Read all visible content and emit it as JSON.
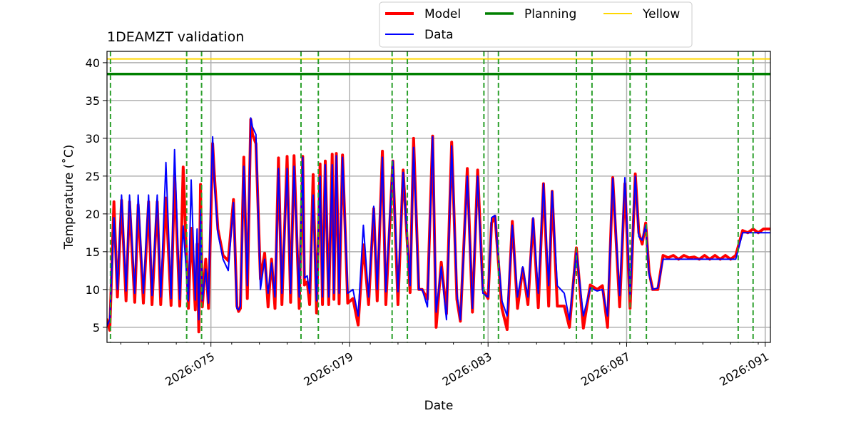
{
  "chart_data": {
    "type": "line",
    "title": "1DEAMZT validation",
    "xlabel": "Date",
    "ylabel": "Temperature ($^\\circ$C)",
    "ylabel_display": "Temperature (˚C)",
    "xlim": [
      72.0,
      91.15
    ],
    "ylim": [
      3.0,
      41.5
    ],
    "yticks": [
      5,
      10,
      15,
      20,
      25,
      30,
      35,
      40
    ],
    "xticks": [
      {
        "value": 75,
        "label": "2026:075"
      },
      {
        "value": 79,
        "label": "2026:079"
      },
      {
        "value": 83,
        "label": "2026:083"
      },
      {
        "value": 87,
        "label": "2026:087"
      },
      {
        "value": 91,
        "label": "2026:091"
      }
    ],
    "minor_xticks": [
      72.4,
      73.2,
      74.0,
      74.8,
      75.6,
      76.4,
      77.2,
      78.0,
      78.8,
      79.6,
      80.4,
      81.2,
      82.0,
      82.8,
      83.6,
      84.4,
      85.2,
      86.0,
      86.8,
      87.6,
      88.4,
      89.2,
      90.0,
      90.8
    ],
    "grid": true,
    "legend": {
      "placement": "top-center",
      "entries": [
        {
          "label": "Model",
          "color": "#ff0000"
        },
        {
          "label": "Planning",
          "color": "#008000"
        },
        {
          "label": "Yellow",
          "color": "#ffd700"
        },
        {
          "label": "Data",
          "color": "#0000ff"
        }
      ]
    },
    "hlines": [
      {
        "name": "Planning",
        "value": 38.5,
        "color": "#008000"
      },
      {
        "name": "Yellow",
        "value": 40.5,
        "color": "#ffd700"
      }
    ],
    "vlines_color": "#2ca02c",
    "vlines": [
      72.1,
      74.3,
      74.73,
      77.6,
      78.1,
      80.23,
      80.67,
      82.88,
      83.3,
      85.55,
      86.0,
      87.1,
      87.57,
      90.22,
      90.65
    ],
    "series": [
      {
        "name": "Model",
        "color": "#ff0000",
        "width": 4,
        "x": [
          72.0,
          72.08,
          72.2,
          72.3,
          72.42,
          72.55,
          72.65,
          72.8,
          72.9,
          73.05,
          73.2,
          73.3,
          73.45,
          73.55,
          73.7,
          73.85,
          73.95,
          74.1,
          74.2,
          74.35,
          74.43,
          74.55,
          74.6,
          74.65,
          74.7,
          74.75,
          74.85,
          74.93,
          75.0,
          75.05,
          75.1,
          75.2,
          75.35,
          75.5,
          75.65,
          75.75,
          75.8,
          75.85,
          75.95,
          76.05,
          76.15,
          76.2,
          76.3,
          76.43,
          76.55,
          76.65,
          76.75,
          76.85,
          76.95,
          77.05,
          77.2,
          77.3,
          77.4,
          77.55,
          77.65,
          77.7,
          77.78,
          77.85,
          77.95,
          78.05,
          78.15,
          78.22,
          78.3,
          78.4,
          78.5,
          78.55,
          78.62,
          78.7,
          78.8,
          78.95,
          79.1,
          79.25,
          79.4,
          79.55,
          79.7,
          79.8,
          79.95,
          80.05,
          80.25,
          80.4,
          80.55,
          80.75,
          80.85,
          81.0,
          81.1,
          81.25,
          81.4,
          81.5,
          81.65,
          81.8,
          81.95,
          82.1,
          82.2,
          82.4,
          82.55,
          82.7,
          82.85,
          83.0,
          83.1,
          83.2,
          83.4,
          83.55,
          83.7,
          83.85,
          84.0,
          84.15,
          84.3,
          84.45,
          84.6,
          84.75,
          84.85,
          85.0,
          85.2,
          85.35,
          85.55,
          85.75,
          85.95,
          86.15,
          86.3,
          86.45,
          86.6,
          86.8,
          86.95,
          87.1,
          87.25,
          87.35,
          87.45,
          87.55,
          87.65,
          87.75,
          87.9,
          88.05,
          88.2,
          88.35,
          88.5,
          88.65,
          88.8,
          88.95,
          89.1,
          89.25,
          89.4,
          89.55,
          89.7,
          89.85,
          90.0,
          90.15,
          90.35,
          90.5,
          90.65,
          90.8,
          90.95,
          91.05,
          91.15
        ],
        "y": [
          6,
          4.6,
          21.6,
          9.0,
          21.8,
          8.5,
          21.6,
          8.3,
          21.2,
          8.2,
          21.6,
          8.0,
          21.6,
          8.0,
          22.1,
          7.9,
          25.1,
          7.8,
          26.2,
          7.5,
          18.1,
          7.3,
          16.0,
          4.4,
          23.9,
          7.7,
          14.0,
          7.5,
          20.0,
          29.3,
          25.2,
          18.0,
          14.5,
          13.8,
          21.9,
          7.8,
          7.1,
          7.5,
          27.5,
          8.8,
          32.5,
          30.5,
          29.3,
          11.4,
          14.8,
          7.7,
          14.0,
          7.5,
          27.4,
          8.0,
          27.6,
          8.3,
          27.7,
          7.5,
          27.6,
          10.6,
          11.0,
          8.0,
          25.2,
          6.9,
          26.6,
          8.0,
          27.0,
          8.0,
          27.9,
          8.7,
          28.0,
          8.1,
          27.8,
          8.2,
          8.8,
          5.3,
          15.9,
          8.0,
          20.7,
          8.5,
          28.3,
          8.0,
          27.0,
          8.0,
          25.8,
          9.6,
          30.0,
          10.0,
          10.0,
          8.7,
          30.3,
          5.0,
          13.6,
          6.8,
          29.5,
          8.7,
          5.8,
          26.0,
          7.0,
          25.8,
          10.0,
          8.8,
          18.8,
          19.7,
          7.5,
          4.7,
          19.0,
          7.5,
          12.8,
          8.0,
          19.3,
          7.6,
          24.0,
          7.8,
          23.0,
          7.8,
          7.8,
          5.0,
          15.5,
          4.9,
          10.6,
          10.0,
          10.5,
          5.0,
          24.8,
          7.7,
          24.0,
          7.5,
          25.3,
          17.5,
          16.0,
          18.8,
          12.3,
          10.0,
          10.0,
          14.5,
          14.2,
          14.5,
          14.0,
          14.5,
          14.2,
          14.3,
          14.0,
          14.5,
          14.0,
          14.5,
          14.0,
          14.5,
          14.0,
          14.5,
          17.8,
          17.5,
          18.0,
          17.5,
          18.0,
          18.0,
          18.0
        ]
      },
      {
        "name": "Data",
        "color": "#0000ff",
        "width": 2,
        "x": [
          72.0,
          72.08,
          72.2,
          72.3,
          72.42,
          72.55,
          72.65,
          72.8,
          72.9,
          73.05,
          73.2,
          73.3,
          73.45,
          73.55,
          73.7,
          73.85,
          73.95,
          74.1,
          74.2,
          74.35,
          74.43,
          74.55,
          74.6,
          74.65,
          74.7,
          74.75,
          74.85,
          74.93,
          75.0,
          75.05,
          75.1,
          75.2,
          75.35,
          75.5,
          75.65,
          75.75,
          75.8,
          75.85,
          75.95,
          76.05,
          76.15,
          76.2,
          76.3,
          76.43,
          76.55,
          76.65,
          76.75,
          76.85,
          76.95,
          77.05,
          77.2,
          77.3,
          77.4,
          77.55,
          77.65,
          77.7,
          77.78,
          77.85,
          77.95,
          78.05,
          78.15,
          78.22,
          78.3,
          78.4,
          78.5,
          78.55,
          78.62,
          78.7,
          78.8,
          78.95,
          79.1,
          79.25,
          79.4,
          79.55,
          79.7,
          79.8,
          79.95,
          80.05,
          80.25,
          80.4,
          80.55,
          80.75,
          80.85,
          81.0,
          81.1,
          81.25,
          81.4,
          81.5,
          81.65,
          81.8,
          81.95,
          82.1,
          82.2,
          82.4,
          82.55,
          82.7,
          82.85,
          83.0,
          83.1,
          83.2,
          83.4,
          83.55,
          83.7,
          83.85,
          84.0,
          84.15,
          84.3,
          84.45,
          84.6,
          84.75,
          84.85,
          85.0,
          85.2,
          85.35,
          85.55,
          85.75,
          85.95,
          86.15,
          86.3,
          86.45,
          86.6,
          86.8,
          86.95,
          87.1,
          87.25,
          87.35,
          87.45,
          87.55,
          87.65,
          87.75,
          87.9,
          88.05,
          88.2,
          88.35,
          88.5,
          88.65,
          88.8,
          88.95,
          89.1,
          89.25,
          89.4,
          89.55,
          89.7,
          89.85,
          90.0,
          90.15,
          90.35,
          90.5,
          90.65,
          90.8,
          90.95,
          91.05,
          91.15
        ],
        "y": [
          5.2,
          6.0,
          19.5,
          10.0,
          22.5,
          9.8,
          22.5,
          9.5,
          22.5,
          9.5,
          22.5,
          9.2,
          22.5,
          9.0,
          26.8,
          8.8,
          28.5,
          8.7,
          18.4,
          8.5,
          24.5,
          8.6,
          18.0,
          6.0,
          20.5,
          8.5,
          12.7,
          8.2,
          23.0,
          30.2,
          24.0,
          17.5,
          14.0,
          12.5,
          21.5,
          7.5,
          7.3,
          7.8,
          26.3,
          10.5,
          32.7,
          31.5,
          30.5,
          10.0,
          14.0,
          9.5,
          13.5,
          9.0,
          26.0,
          9.5,
          26.0,
          9.5,
          26.3,
          9.0,
          27.5,
          11.5,
          11.8,
          9.5,
          22.5,
          8.5,
          25.0,
          9.0,
          26.5,
          9.0,
          26.5,
          9.5,
          27.7,
          9.5,
          27.5,
          9.5,
          10.0,
          6.5,
          18.5,
          9.0,
          21.0,
          10.0,
          27.5,
          9.7,
          27.0,
          9.7,
          25.5,
          10.5,
          28.8,
          10.0,
          10.0,
          7.7,
          30.2,
          7.0,
          13.0,
          6.0,
          29.0,
          9.5,
          6.0,
          25.0,
          7.5,
          25.0,
          9.5,
          9.0,
          19.5,
          19.8,
          8.5,
          6.5,
          18.5,
          9.0,
          13.0,
          9.0,
          19.5,
          9.5,
          24.0,
          10.5,
          23.0,
          10.5,
          9.5,
          6.0,
          15.0,
          6.5,
          10.2,
          9.8,
          10.0,
          6.5,
          24.7,
          9.2,
          24.8,
          9.0,
          25.0,
          17.0,
          16.5,
          18.5,
          12.0,
          10.0,
          10.2,
          14.0,
          14.0,
          14.0,
          14.0,
          14.0,
          14.0,
          14.0,
          14.0,
          14.0,
          14.0,
          14.0,
          14.0,
          14.0,
          14.0,
          14.0,
          17.5,
          17.5,
          17.5,
          17.5,
          17.5,
          17.5,
          17.5
        ]
      }
    ]
  }
}
